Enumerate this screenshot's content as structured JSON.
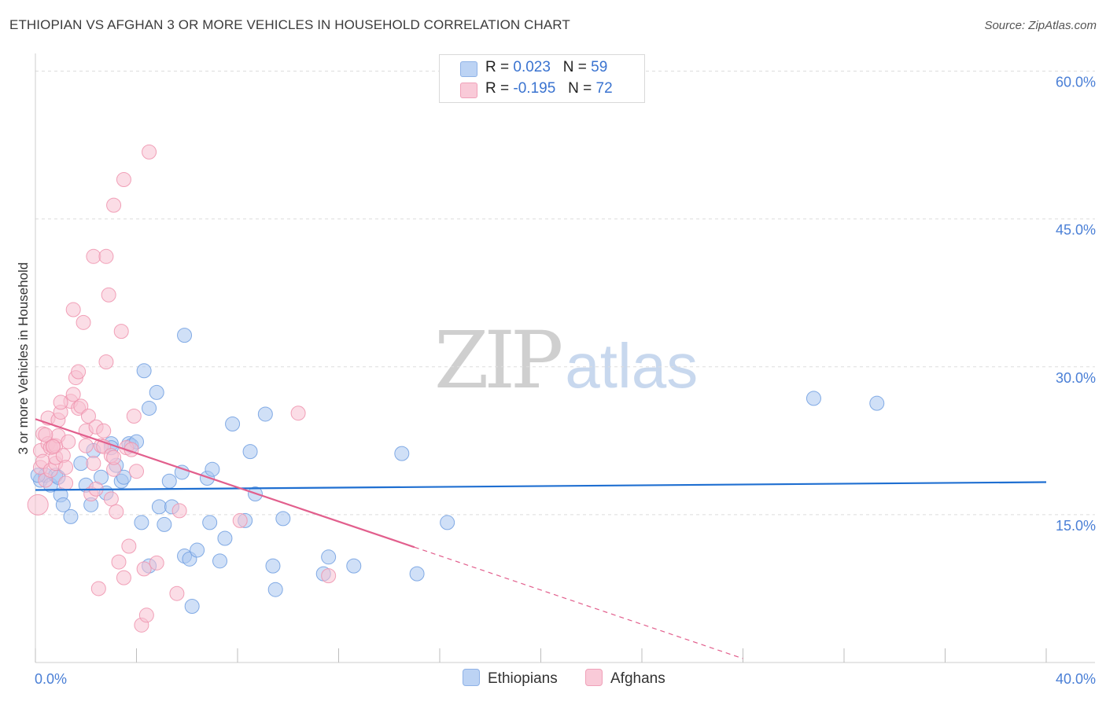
{
  "header": {
    "title": "ETHIOPIAN VS AFGHAN 3 OR MORE VEHICLES IN HOUSEHOLD CORRELATION CHART",
    "source": "Source: ZipAtlas.com"
  },
  "watermark": {
    "zip": "ZIP",
    "atlas": "atlas"
  },
  "legend": {
    "rows": [
      {
        "series": "Ethiopians",
        "r_label": "R =",
        "r_value": "0.023",
        "n_label": "N =",
        "n_value": "59",
        "color": "#a9c6f0"
      },
      {
        "series": "Afghans",
        "r_label": "R =",
        "r_value": "-0.195",
        "n_label": "N =",
        "n_value": "72",
        "color": "#f5b8cb"
      }
    ]
  },
  "bottom_legend": [
    "Ethiopians",
    "Afghans"
  ],
  "colors": {
    "ethiopian_fill": "#a9c6f0",
    "ethiopian_stroke": "#6f9ee0",
    "ethiopian_line": "#1f6fd1",
    "afghan_fill": "#f7c1d1",
    "afghan_stroke": "#ee92ad",
    "afghan_line": "#e25f8d",
    "tick_text": "#4a7fd6",
    "grid": "#dddddd"
  },
  "chart_data": {
    "type": "scatter",
    "title": "ETHIOPIAN VS AFGHAN 3 OR MORE VEHICLES IN HOUSEHOLD CORRELATION CHART",
    "xlabel": "",
    "ylabel": "3 or more Vehicles in Household",
    "xlim": [
      0,
      40
    ],
    "ylim": [
      0,
      61
    ],
    "x_tick_labels": [
      "0.0%",
      "40.0%"
    ],
    "y_ticks": [
      15,
      30,
      45,
      60
    ],
    "y_tick_labels": [
      "15.0%",
      "30.0%",
      "45.0%",
      "60.0%"
    ],
    "grid": true,
    "legend_position": "top-center",
    "series": [
      {
        "name": "Ethiopians",
        "r": 0.023,
        "n": 59,
        "trend": {
          "x": [
            0,
            40
          ],
          "y": [
            17.5,
            18.3
          ],
          "dashed_after": null
        },
        "points": [
          [
            0.2,
            18.5
          ],
          [
            0.4,
            19.0
          ],
          [
            0.6,
            18.0
          ],
          [
            0.8,
            19.0
          ],
          [
            0.9,
            18.8
          ],
          [
            1.0,
            17.0
          ],
          [
            1.1,
            16.0
          ],
          [
            1.4,
            14.8
          ],
          [
            1.8,
            20.2
          ],
          [
            2.0,
            18.0
          ],
          [
            2.2,
            16.0
          ],
          [
            2.3,
            21.5
          ],
          [
            2.6,
            18.8
          ],
          [
            2.8,
            17.2
          ],
          [
            3.0,
            22.2
          ],
          [
            3.0,
            21.8
          ],
          [
            3.2,
            20.0
          ],
          [
            3.4,
            18.4
          ],
          [
            3.5,
            18.8
          ],
          [
            3.7,
            22.2
          ],
          [
            3.8,
            22.0
          ],
          [
            4.0,
            22.4
          ],
          [
            4.2,
            14.2
          ],
          [
            4.3,
            29.6
          ],
          [
            4.5,
            25.8
          ],
          [
            4.5,
            9.8
          ],
          [
            4.8,
            27.4
          ],
          [
            4.9,
            15.8
          ],
          [
            5.1,
            14.0
          ],
          [
            5.3,
            18.4
          ],
          [
            5.4,
            15.8
          ],
          [
            5.8,
            19.3
          ],
          [
            5.9,
            33.2
          ],
          [
            5.9,
            10.8
          ],
          [
            6.1,
            10.5
          ],
          [
            6.2,
            5.7
          ],
          [
            6.4,
            11.4
          ],
          [
            6.8,
            18.7
          ],
          [
            6.9,
            14.2
          ],
          [
            7.0,
            19.6
          ],
          [
            7.3,
            10.3
          ],
          [
            7.5,
            12.6
          ],
          [
            7.8,
            24.2
          ],
          [
            8.3,
            14.4
          ],
          [
            8.5,
            21.4
          ],
          [
            8.7,
            17.1
          ],
          [
            9.1,
            25.2
          ],
          [
            9.4,
            9.8
          ],
          [
            9.5,
            7.4
          ],
          [
            9.8,
            14.6
          ],
          [
            11.4,
            9.0
          ],
          [
            11.6,
            10.7
          ],
          [
            12.6,
            9.8
          ],
          [
            14.5,
            21.2
          ],
          [
            15.1,
            9.0
          ],
          [
            16.3,
            14.2
          ],
          [
            30.8,
            26.8
          ],
          [
            33.3,
            26.3
          ],
          [
            0.1,
            19.0
          ]
        ]
      },
      {
        "name": "Afghans",
        "r": -0.195,
        "n": 72,
        "trend": {
          "x": [
            0,
            15
          ],
          "y": [
            24.7,
            11.7
          ],
          "dashed_to": {
            "x": 28.0,
            "y": 0.4
          }
        },
        "points": [
          [
            0.1,
            16.0
          ],
          [
            0.2,
            19.8
          ],
          [
            0.2,
            21.5
          ],
          [
            0.3,
            20.4
          ],
          [
            0.3,
            23.2
          ],
          [
            0.4,
            18.5
          ],
          [
            0.5,
            22.2
          ],
          [
            0.5,
            24.8
          ],
          [
            0.6,
            21.8
          ],
          [
            0.6,
            19.5
          ],
          [
            0.7,
            22.0
          ],
          [
            0.8,
            20.2
          ],
          [
            0.8,
            20.8
          ],
          [
            0.8,
            22.0
          ],
          [
            0.9,
            23.0
          ],
          [
            0.9,
            24.6
          ],
          [
            1.0,
            25.4
          ],
          [
            1.1,
            21.0
          ],
          [
            1.2,
            19.8
          ],
          [
            1.2,
            18.2
          ],
          [
            1.3,
            22.4
          ],
          [
            1.4,
            26.5
          ],
          [
            1.5,
            27.2
          ],
          [
            1.6,
            28.9
          ],
          [
            1.7,
            29.5
          ],
          [
            1.7,
            25.8
          ],
          [
            1.8,
            26.0
          ],
          [
            1.5,
            35.8
          ],
          [
            1.9,
            34.5
          ],
          [
            2.0,
            23.5
          ],
          [
            2.0,
            22.0
          ],
          [
            2.1,
            25.0
          ],
          [
            2.2,
            17.1
          ],
          [
            2.3,
            41.2
          ],
          [
            2.3,
            20.2
          ],
          [
            2.4,
            23.9
          ],
          [
            2.5,
            7.5
          ],
          [
            2.6,
            22.0
          ],
          [
            2.7,
            23.5
          ],
          [
            2.7,
            21.9
          ],
          [
            2.8,
            30.5
          ],
          [
            2.8,
            41.2
          ],
          [
            2.9,
            37.3
          ],
          [
            3.0,
            21.0
          ],
          [
            3.0,
            16.6
          ],
          [
            3.1,
            19.6
          ],
          [
            3.1,
            20.8
          ],
          [
            3.1,
            46.4
          ],
          [
            3.2,
            15.3
          ],
          [
            3.3,
            10.2
          ],
          [
            3.4,
            33.6
          ],
          [
            3.5,
            8.6
          ],
          [
            3.5,
            49.0
          ],
          [
            3.6,
            21.8
          ],
          [
            3.7,
            11.8
          ],
          [
            3.8,
            21.6
          ],
          [
            3.9,
            25.0
          ],
          [
            4.0,
            19.4
          ],
          [
            4.2,
            3.8
          ],
          [
            4.3,
            9.5
          ],
          [
            4.4,
            4.8
          ],
          [
            4.5,
            51.8
          ],
          [
            4.8,
            10.1
          ],
          [
            5.6,
            7.0
          ],
          [
            5.7,
            15.4
          ],
          [
            8.1,
            14.4
          ],
          [
            10.4,
            25.3
          ],
          [
            11.6,
            8.8
          ],
          [
            0.4,
            23.1
          ],
          [
            1.0,
            26.4
          ],
          [
            2.4,
            17.6
          ],
          [
            0.7,
            21.9
          ]
        ]
      }
    ]
  }
}
